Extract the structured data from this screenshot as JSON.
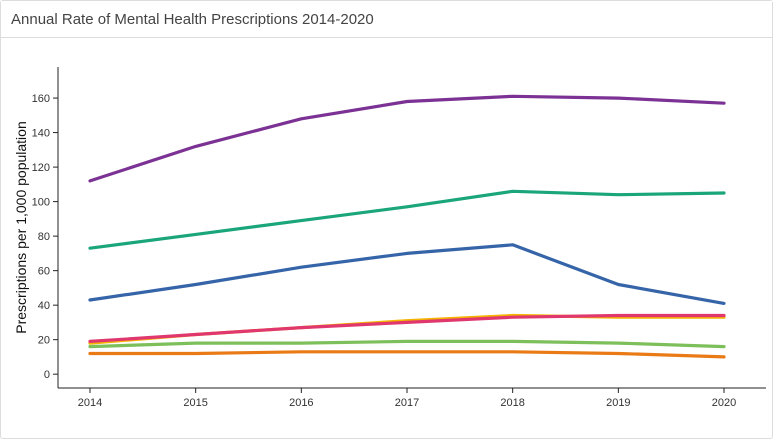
{
  "panel": {
    "title": "Annual Rate of Mental Health Prescriptions 2014-2020"
  },
  "chart_data": {
    "type": "line",
    "title": "Annual Rate of Mental Health Prescriptions 2014-2020",
    "xlabel": "",
    "ylabel": "Prescriptions per 1,000 population",
    "x": [
      2014,
      2015,
      2016,
      2017,
      2018,
      2019,
      2020
    ],
    "ylim": [
      -8,
      178
    ],
    "yticks": [
      0,
      20,
      40,
      60,
      80,
      100,
      120,
      140,
      160
    ],
    "grid": false,
    "series": [
      {
        "color": "#7b3294",
        "values": [
          112,
          132,
          148,
          158,
          161,
          160,
          157
        ]
      },
      {
        "color": "#1aa57a",
        "values": [
          73,
          81,
          89,
          97,
          106,
          104,
          105
        ]
      },
      {
        "color": "#3565a8",
        "values": [
          43,
          52,
          62,
          70,
          75,
          52,
          41
        ]
      },
      {
        "color": "#f4b400",
        "values": [
          18,
          23,
          27,
          31,
          34,
          33,
          33
        ]
      },
      {
        "color": "#e0386e",
        "values": [
          19,
          23,
          27,
          30,
          33,
          34,
          34
        ]
      },
      {
        "color": "#7dbf5a",
        "values": [
          16,
          18,
          18,
          19,
          19,
          18,
          16
        ]
      },
      {
        "color": "#e97a15",
        "values": [
          12,
          12,
          13,
          13,
          13,
          12,
          10
        ]
      }
    ]
  }
}
